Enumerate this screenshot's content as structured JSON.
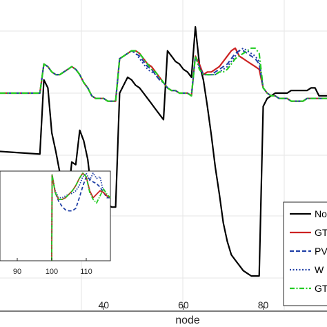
{
  "chart_data": [
    {
      "type": "line",
      "xlabel": "node",
      "ylabel": "",
      "xlim": [
        14,
        96
      ],
      "ylim": [
        0,
        1
      ],
      "x_ticks": [
        40,
        60,
        80
      ],
      "x_tick_labels": [
        "40",
        "60",
        "80"
      ],
      "grid": true,
      "legend_placement": "bottom-right",
      "legend_entries": [
        "No",
        "GT",
        "PV",
        "W",
        "GT"
      ],
      "series": [
        {
          "name": "No",
          "color": "#000000",
          "dash": "solid",
          "x": [
            14,
            24,
            25,
            26,
            27,
            28,
            29,
            30,
            31,
            32,
            33,
            34,
            35,
            36,
            37,
            38,
            39,
            40,
            41,
            42,
            43,
            44,
            45,
            46,
            47,
            48,
            49,
            50,
            51,
            52,
            53,
            54,
            55,
            56,
            57,
            58,
            59,
            60,
            61,
            62,
            63,
            64,
            65,
            66,
            67,
            68,
            69,
            70,
            71,
            72,
            73,
            74,
            75,
            76,
            77,
            78,
            79,
            80,
            81,
            82,
            83,
            84,
            85,
            86,
            87,
            88,
            89,
            90,
            91,
            92,
            93,
            94,
            95,
            96
          ],
          "y": [
            0.47,
            0.46,
            0.74,
            0.71,
            0.54,
            0.47,
            0.39,
            0.33,
            0.28,
            0.43,
            0.42,
            0.55,
            0.51,
            0.44,
            0.31,
            0.28,
            0.27,
            0.27,
            0.27,
            0.26,
            0.26,
            0.69,
            0.72,
            0.75,
            0.74,
            0.72,
            0.71,
            0.69,
            0.67,
            0.65,
            0.63,
            0.61,
            0.59,
            0.85,
            0.83,
            0.81,
            0.8,
            0.78,
            0.77,
            0.75,
            0.94,
            0.8,
            0.74,
            0.64,
            0.53,
            0.41,
            0.31,
            0.2,
            0.13,
            0.08,
            0.06,
            0.04,
            0.02,
            0.01,
            0.0,
            0.0,
            0.0,
            0.64,
            0.67,
            0.68,
            0.69,
            0.69,
            0.69,
            0.69,
            0.7,
            0.7,
            0.7,
            0.7,
            0.7,
            0.71,
            0.71,
            0.68,
            0.68,
            0.68
          ]
        },
        {
          "name": "GT",
          "color": "#cc2222",
          "dash": "solid",
          "x": [
            14,
            24,
            25,
            26,
            27,
            28,
            29,
            30,
            31,
            32,
            33,
            34,
            35,
            36,
            37,
            38,
            39,
            40,
            41,
            42,
            43,
            44,
            45,
            46,
            47,
            48,
            49,
            50,
            51,
            52,
            53,
            54,
            55,
            56,
            57,
            58,
            59,
            60,
            61,
            62,
            63,
            64,
            65,
            66,
            67,
            68,
            69,
            70,
            71,
            72,
            73,
            74,
            75,
            76,
            77,
            78,
            79,
            80,
            81,
            82,
            83,
            84,
            85,
            86,
            87,
            88,
            89,
            90,
            91,
            92,
            93,
            94,
            95,
            96
          ],
          "y": [
            0.69,
            0.69,
            0.8,
            0.79,
            0.77,
            0.76,
            0.76,
            0.77,
            0.78,
            0.79,
            0.78,
            0.76,
            0.73,
            0.71,
            0.68,
            0.67,
            0.67,
            0.67,
            0.66,
            0.66,
            0.66,
            0.82,
            0.83,
            0.84,
            0.85,
            0.85,
            0.84,
            0.82,
            0.8,
            0.79,
            0.77,
            0.75,
            0.73,
            0.71,
            0.7,
            0.7,
            0.69,
            0.69,
            0.69,
            0.68,
            0.83,
            0.8,
            0.76,
            0.77,
            0.77,
            0.78,
            0.79,
            0.81,
            0.83,
            0.85,
            0.86,
            0.83,
            0.82,
            0.81,
            0.8,
            0.79,
            0.78,
            0.71,
            0.69,
            0.68,
            0.68,
            0.67,
            0.67,
            0.67,
            0.66,
            0.66,
            0.66,
            0.66,
            0.67,
            0.67,
            0.67,
            0.67,
            0.67,
            0.67
          ]
        },
        {
          "name": "PV",
          "color": "#1f3fa6",
          "dash": "dash",
          "x": [
            14,
            24,
            25,
            26,
            27,
            28,
            29,
            30,
            31,
            32,
            33,
            34,
            35,
            36,
            37,
            38,
            39,
            40,
            41,
            42,
            43,
            44,
            45,
            46,
            47,
            48,
            49,
            50,
            51,
            52,
            53,
            54,
            55,
            56,
            57,
            58,
            59,
            60,
            61,
            62,
            63,
            64,
            65,
            66,
            67,
            68,
            69,
            70,
            71,
            72,
            73,
            74,
            75,
            76,
            77,
            78,
            79,
            80,
            81,
            82,
            83,
            84,
            85,
            86,
            87,
            88,
            89,
            90,
            91,
            92,
            93,
            94,
            95,
            96
          ],
          "y": [
            0.69,
            0.69,
            0.8,
            0.79,
            0.77,
            0.76,
            0.76,
            0.77,
            0.78,
            0.79,
            0.78,
            0.76,
            0.73,
            0.71,
            0.68,
            0.67,
            0.67,
            0.67,
            0.66,
            0.66,
            0.66,
            0.82,
            0.83,
            0.84,
            0.85,
            0.84,
            0.83,
            0.81,
            0.79,
            0.78,
            0.76,
            0.74,
            0.73,
            0.71,
            0.7,
            0.7,
            0.69,
            0.69,
            0.69,
            0.68,
            0.83,
            0.79,
            0.76,
            0.76,
            0.76,
            0.77,
            0.78,
            0.79,
            0.8,
            0.82,
            0.84,
            0.85,
            0.85,
            0.84,
            0.83,
            0.82,
            0.8,
            0.71,
            0.69,
            0.68,
            0.68,
            0.67,
            0.67,
            0.67,
            0.66,
            0.66,
            0.66,
            0.66,
            0.67,
            0.67,
            0.67,
            0.67,
            0.67,
            0.67
          ]
        },
        {
          "name": "W",
          "color": "#1f3fa6",
          "dash": "dot",
          "x": [
            14,
            24,
            25,
            26,
            27,
            28,
            29,
            30,
            31,
            32,
            33,
            34,
            35,
            36,
            37,
            38,
            39,
            40,
            41,
            42,
            43,
            44,
            45,
            46,
            47,
            48,
            49,
            50,
            51,
            52,
            53,
            54,
            55,
            56,
            57,
            58,
            59,
            60,
            61,
            62,
            63,
            64,
            65,
            66,
            67,
            68,
            69,
            70,
            71,
            72,
            73,
            74,
            75,
            76,
            77,
            78,
            79,
            80,
            81,
            82,
            83,
            84,
            85,
            86,
            87,
            88,
            89,
            90,
            91,
            92,
            93,
            94,
            95,
            96
          ],
          "y": [
            0.69,
            0.69,
            0.8,
            0.79,
            0.77,
            0.76,
            0.76,
            0.77,
            0.78,
            0.79,
            0.78,
            0.76,
            0.73,
            0.71,
            0.68,
            0.67,
            0.67,
            0.67,
            0.66,
            0.66,
            0.66,
            0.82,
            0.83,
            0.84,
            0.85,
            0.84,
            0.82,
            0.8,
            0.78,
            0.77,
            0.76,
            0.74,
            0.73,
            0.71,
            0.7,
            0.7,
            0.69,
            0.69,
            0.69,
            0.68,
            0.83,
            0.79,
            0.76,
            0.76,
            0.76,
            0.76,
            0.77,
            0.78,
            0.79,
            0.81,
            0.83,
            0.85,
            0.86,
            0.85,
            0.84,
            0.83,
            0.81,
            0.71,
            0.69,
            0.68,
            0.68,
            0.67,
            0.67,
            0.67,
            0.66,
            0.66,
            0.66,
            0.66,
            0.67,
            0.67,
            0.67,
            0.67,
            0.67,
            0.67
          ]
        },
        {
          "name": "GT",
          "color": "#22cc22",
          "dash": "dashdot",
          "x": [
            14,
            24,
            25,
            26,
            27,
            28,
            29,
            30,
            31,
            32,
            33,
            34,
            35,
            36,
            37,
            38,
            39,
            40,
            41,
            42,
            43,
            44,
            45,
            46,
            47,
            48,
            49,
            50,
            51,
            52,
            53,
            54,
            55,
            56,
            57,
            58,
            59,
            60,
            61,
            62,
            63,
            64,
            65,
            66,
            67,
            68,
            69,
            70,
            71,
            72,
            73,
            74,
            75,
            76,
            77,
            78,
            79,
            80,
            81,
            82,
            83,
            84,
            85,
            86,
            87,
            88,
            89,
            90,
            91,
            92,
            93,
            94,
            95,
            96
          ],
          "y": [
            0.69,
            0.69,
            0.8,
            0.79,
            0.77,
            0.76,
            0.76,
            0.77,
            0.78,
            0.79,
            0.78,
            0.76,
            0.73,
            0.71,
            0.68,
            0.67,
            0.67,
            0.67,
            0.66,
            0.66,
            0.66,
            0.82,
            0.83,
            0.84,
            0.85,
            0.85,
            0.84,
            0.82,
            0.8,
            0.78,
            0.77,
            0.75,
            0.73,
            0.71,
            0.7,
            0.7,
            0.69,
            0.69,
            0.69,
            0.68,
            0.83,
            0.78,
            0.76,
            0.76,
            0.76,
            0.76,
            0.77,
            0.77,
            0.78,
            0.8,
            0.82,
            0.83,
            0.84,
            0.85,
            0.86,
            0.86,
            0.84,
            0.71,
            0.69,
            0.68,
            0.68,
            0.67,
            0.67,
            0.67,
            0.66,
            0.66,
            0.66,
            0.66,
            0.67,
            0.67,
            0.67,
            0.67,
            0.67,
            0.67
          ]
        }
      ]
    },
    {
      "type": "line",
      "xlabel": "",
      "ylabel": "",
      "xlim": [
        85,
        117
      ],
      "ylim": [
        0,
        1
      ],
      "x_ticks": [
        90,
        100,
        110
      ],
      "x_tick_labels": [
        "90",
        "100",
        "110"
      ],
      "grid": false,
      "series": [
        {
          "color": "#1f3fa6",
          "dash": "dash",
          "x": [
            100,
            100.1,
            101,
            102,
            103,
            104,
            105,
            106,
            107,
            108,
            109,
            110,
            111,
            112,
            113,
            114,
            115,
            116,
            117
          ],
          "y": [
            0.0,
            0.98,
            0.78,
            0.68,
            0.62,
            0.58,
            0.57,
            0.57,
            0.6,
            0.72,
            0.85,
            0.96,
            0.93,
            0.9,
            0.88,
            0.84,
            0.78,
            0.72,
            0.72
          ]
        },
        {
          "color": "#1f3fa6",
          "dash": "dot",
          "x": [
            100,
            100.1,
            101,
            102,
            103,
            104,
            105,
            106,
            107,
            108,
            109,
            110,
            111,
            112,
            113,
            114,
            115,
            116,
            117
          ],
          "y": [
            0.0,
            0.98,
            0.8,
            0.72,
            0.72,
            0.74,
            0.76,
            0.77,
            0.8,
            0.86,
            0.96,
            1.0,
            0.92,
            1.0,
            0.94,
            0.96,
            0.78,
            0.74,
            0.72
          ]
        },
        {
          "color": "#cc2222",
          "dash": "solid",
          "x": [
            100,
            100.1,
            101,
            102,
            103,
            104,
            105,
            106,
            107,
            108,
            109,
            110,
            111,
            112,
            113,
            114,
            115,
            116,
            117
          ],
          "y": [
            0.0,
            0.98,
            0.78,
            0.7,
            0.7,
            0.72,
            0.76,
            0.8,
            0.86,
            0.94,
            1.0,
            0.96,
            0.8,
            0.72,
            0.76,
            0.8,
            0.78,
            0.74,
            0.72
          ]
        },
        {
          "color": "#22cc22",
          "dash": "dashdot",
          "x": [
            100,
            100.1,
            101,
            102,
            103,
            104,
            105,
            106,
            107,
            108,
            109,
            110,
            111,
            112,
            113,
            114,
            115,
            116,
            117
          ],
          "y": [
            0.0,
            0.98,
            0.78,
            0.7,
            0.7,
            0.72,
            0.76,
            0.8,
            0.86,
            0.94,
            1.0,
            0.96,
            0.78,
            0.7,
            0.66,
            0.74,
            0.82,
            0.76,
            0.72
          ]
        }
      ]
    }
  ]
}
